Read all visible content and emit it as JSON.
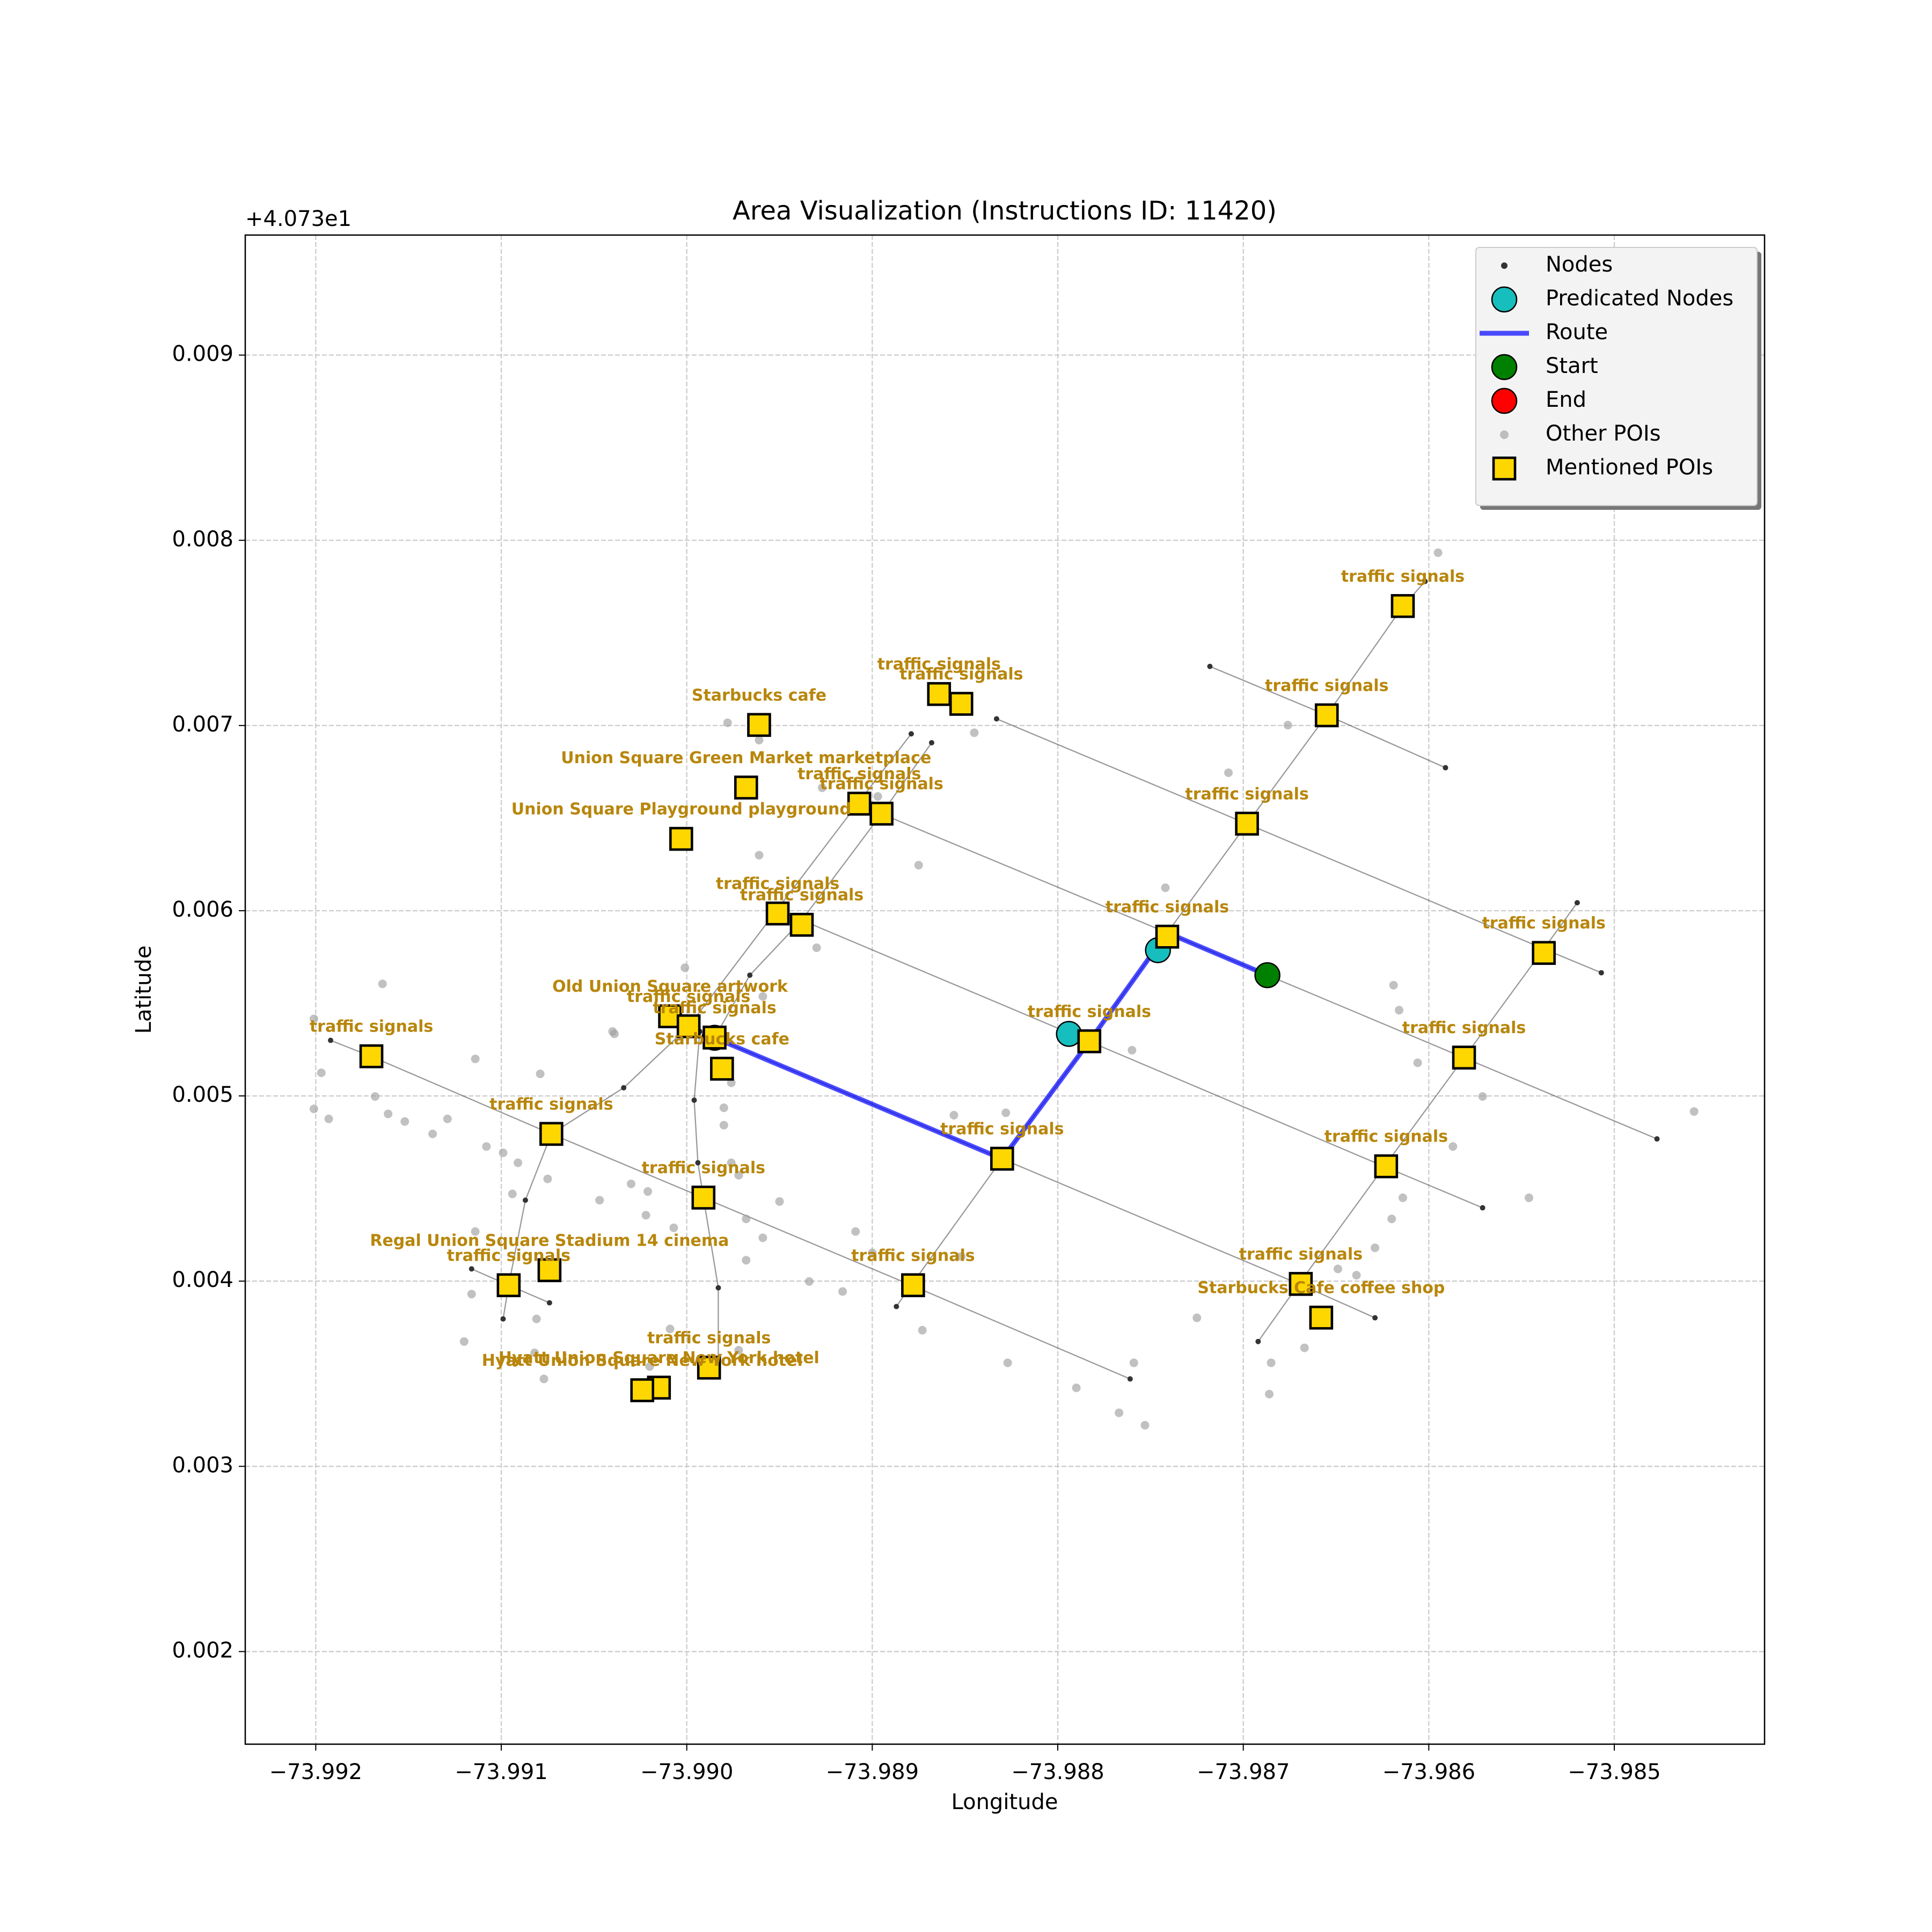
{
  "chart_data": {
    "type": "scatter",
    "title": "Area Visualization (Instructions ID: 11420)",
    "xlabel": "Longitude",
    "ylabel": "Latitude",
    "y_offset_text": "+4.073e1",
    "xlim": [
      -73.99238,
      -73.98419
    ],
    "ylim": [
      0.0015,
      0.009648
    ],
    "xticks": [
      {
        "value": -73.992,
        "label": "−73.992"
      },
      {
        "value": -73.991,
        "label": "−73.991"
      },
      {
        "value": -73.99,
        "label": "−73.990"
      },
      {
        "value": -73.989,
        "label": "−73.989"
      },
      {
        "value": -73.988,
        "label": "−73.988"
      },
      {
        "value": -73.987,
        "label": "−73.987"
      },
      {
        "value": -73.986,
        "label": "−73.986"
      },
      {
        "value": -73.985,
        "label": "−73.985"
      }
    ],
    "yticks": [
      0.002,
      0.003,
      0.004,
      0.005,
      0.006,
      0.007,
      0.008,
      0.009
    ],
    "grid": true,
    "legend": "upper right",
    "series": [
      {
        "name": "Nodes",
        "type": "nodes",
        "color": "#333333",
        "segments": [
          {
            "x": [
              -73.99192,
              -73.9917,
              -73.99073,
              -73.98991,
              -73.98879,
              -73.98761
            ],
            "y": [
              0.0053,
              0.005213,
              0.004795,
              0.00445,
              0.003978,
              0.003472
            ]
          },
          {
            "x": [
              -73.98953,
              -73.98938,
              -73.98783,
              -73.98624,
              -73.98571
            ],
            "y": [
              0.00601,
              0.005949,
              0.005294,
              0.004619,
              0.004396
            ]
          },
          {
            "x": [
              -73.98905,
              -73.98895,
              -73.98741,
              -73.98687,
              -73.98581,
              -73.98477
            ],
            "y": [
              0.006563,
              0.006523,
              0.005881,
              0.005652,
              0.005206,
              0.004768
            ]
          },
          {
            "x": [
              -73.98833,
              -73.98698,
              -73.98538,
              -73.98507
            ],
            "y": [
              0.007036,
              0.006469,
              0.005794,
              0.005665
            ]
          },
          {
            "x": [
              -73.98718,
              -73.98655,
              -73.98591
            ],
            "y": [
              0.007319,
              0.007056,
              0.006772
            ]
          },
          {
            "x": [
              -73.98993,
              -73.98985,
              -73.9883,
              -73.9867,
              -73.98629
            ],
            "y": [
              0.005348,
              0.005314,
              0.00466,
              0.003985,
              0.003802
            ]
          },
          {
            "x": [
              -73.99116,
              -73.99096,
              -73.99074
            ],
            "y": [
              0.004066,
              0.003978,
              0.003883
            ]
          },
          {
            "x": [
              -73.99099,
              -73.99096,
              -73.99087,
              -73.99073,
              -73.99034,
              -73.98999,
              -73.98951,
              -73.98908,
              -73.98879
            ],
            "y": [
              0.003796,
              0.003978,
              0.004437,
              0.004795,
              0.005044,
              0.005375,
              0.00601,
              0.006577,
              0.006955
            ]
          },
          {
            "x": [
              -73.98985,
              -73.98966,
              -73.98938,
              -73.98895,
              -73.98868
            ],
            "y": [
              0.005314,
              0.005652,
              0.005949,
              0.006523,
              0.006907
            ]
          },
          {
            "x": [
              -73.98887,
              -73.98879,
              -73.9883,
              -73.98783,
              -73.98741,
              -73.98698,
              -73.98655,
              -73.98614,
              -73.98602
            ],
            "y": [
              0.003863,
              0.003978,
              0.00466,
              0.005294,
              0.005881,
              0.006469,
              0.007056,
              0.007643,
              0.007778
            ]
          },
          {
            "x": [
              -73.98692,
              -73.9867,
              -73.98624,
              -73.98581,
              -73.98538,
              -73.9852
            ],
            "y": [
              0.003674,
              0.003985,
              0.004619,
              0.005206,
              0.005794,
              0.006043
            ]
          },
          {
            "x": [
              -73.98993,
              -73.98996,
              -73.98994,
              -73.98991,
              -73.98983,
              -73.98983
            ],
            "y": [
              0.005348,
              0.004977,
              0.004639,
              0.00445,
              0.003964,
              0.003532
            ]
          }
        ]
      },
      {
        "name": "Other POIs",
        "type": "scatter",
        "marker": "dot",
        "color": "#a0a0a0",
        "x": [
          -73.98595,
          -73.98676,
          -73.98708,
          -73.98897,
          -73.98927,
          -73.98961,
          -73.98978,
          -73.98961,
          -73.98875,
          -73.98845,
          -73.99001,
          -73.98959,
          -73.9904,
          -73.9893,
          -73.98742,
          -73.98619,
          -73.98616,
          -73.98606,
          -73.98571,
          -73.98587,
          -73.98546,
          -73.98457,
          -73.98614,
          -73.9862,
          -73.98629,
          -73.98639,
          -73.98649,
          -73.9876,
          -73.98856,
          -73.98828,
          -73.98852,
          -73.98873,
          -73.98827,
          -73.9879,
          -73.98767,
          -73.98753,
          -73.98759,
          -73.98725,
          -73.98685,
          -73.98686,
          -73.98667,
          -73.99201,
          -73.99197,
          -73.99201,
          -73.99193,
          -73.99164,
          -73.99168,
          -73.99161,
          -73.99152,
          -73.99137,
          -73.99129,
          -73.99114,
          -73.99079,
          -73.99108,
          -73.99099,
          -73.99091,
          -73.99075,
          -73.99094,
          -73.99114,
          -73.99116,
          -73.9912,
          -73.99081,
          -73.99082,
          -73.99077,
          -73.99047,
          -73.9903,
          -73.99021,
          -73.99022,
          -73.99007,
          -73.98976,
          -73.9898,
          -73.9898,
          -73.98972,
          -73.98968,
          -73.98959,
          -73.9895,
          -73.98968,
          -73.98934,
          -73.98916,
          -73.98909,
          -73.989,
          -73.99009,
          -73.9902,
          -73.98972,
          -73.99039,
          -73.98976
        ],
        "y": [
          0.007933,
          0.007002,
          0.006745,
          0.006617,
          0.006664,
          0.006921,
          0.007015,
          0.0063,
          0.006246,
          0.006961,
          0.005692,
          0.005537,
          0.005348,
          0.0058,
          0.006124,
          0.005598,
          0.005463,
          0.005179,
          0.004997,
          0.004727,
          0.00445,
          0.004916,
          0.00445,
          0.004336,
          0.00418,
          0.004032,
          0.004066,
          0.005247,
          0.004896,
          0.004909,
          0.004133,
          0.003735,
          0.003559,
          0.003424,
          0.003289,
          0.003222,
          0.003559,
          0.003802,
          0.003559,
          0.00339,
          0.00364,
          0.005416,
          0.005125,
          0.00493,
          0.004876,
          0.005605,
          0.004997,
          0.004903,
          0.004862,
          0.004795,
          0.004876,
          0.0052,
          0.005119,
          0.004727,
          0.004693,
          0.004639,
          0.004552,
          0.004471,
          0.004268,
          0.00393,
          0.003674,
          0.003796,
          0.003613,
          0.003472,
          0.004437,
          0.004525,
          0.004484,
          0.004356,
          0.004288,
          0.004639,
          0.004842,
          0.004936,
          0.004572,
          0.004336,
          0.004234,
          0.00443,
          0.004113,
          0.003998,
          0.003944,
          0.004268,
          0.004153,
          0.003742,
          0.003539,
          0.003627,
          0.005335,
          0.005071
        ]
      },
      {
        "name": "Route",
        "type": "line",
        "color": "#0000ff",
        "x": [
          -73.98687,
          -73.98741,
          -73.98783,
          -73.9883,
          -73.98985
        ],
        "y": [
          0.005652,
          0.005881,
          0.005294,
          0.00466,
          0.005314
        ]
      },
      {
        "name": "Predicated Nodes",
        "type": "scatter",
        "marker": "circle",
        "color": "#17bebe",
        "x": [
          -73.98746,
          -73.98794
        ],
        "y": [
          0.005787,
          0.005335
        ]
      },
      {
        "name": "Start",
        "type": "scatter",
        "marker": "circle",
        "color": "#008000",
        "x": [
          -73.98687
        ],
        "y": [
          0.005652
        ]
      },
      {
        "name": "End",
        "type": "scatter",
        "marker": "circle",
        "color": "#ff0000",
        "x": [
          -73.98985
        ],
        "y": [
          0.005314
        ]
      },
      {
        "name": "Mentioned POIs",
        "type": "scatter",
        "marker": "square",
        "color": "#ffd700",
        "label_color": "#b8860b",
        "x": [
          -73.98614,
          -73.98655,
          -73.98864,
          -73.98852,
          -73.98961,
          -73.98968,
          -73.99003,
          -73.98907,
          -73.98895,
          -73.98698,
          -73.98951,
          -73.98938,
          -73.98741,
          -73.98538,
          -73.9917,
          -73.99009,
          -73.98999,
          -73.98985,
          -73.98981,
          -73.98783,
          -73.98581,
          -73.99073,
          -73.9883,
          -73.98623,
          -73.98991,
          -73.99096,
          -73.99074,
          -73.98878,
          -73.98669,
          -73.98658,
          -73.98988,
          -73.99015,
          -73.99024
        ],
        "y": [
          0.007645,
          0.007055,
          0.00717,
          0.007117,
          0.007003,
          0.006665,
          0.006388,
          0.006578,
          0.006524,
          0.00647,
          0.005985,
          0.005924,
          0.00586,
          0.005772,
          0.005214,
          0.00543,
          0.005376,
          0.005315,
          0.005147,
          0.005295,
          0.005207,
          0.004795,
          0.004661,
          0.00462,
          0.004451,
          0.003978,
          0.004059,
          0.003978,
          0.003985,
          0.003803,
          0.003533,
          0.003425,
          0.003411
        ],
        "labels": [
          "traffic signals",
          "traffic signals",
          "traffic signals",
          "traffic signals",
          "Starbucks cafe",
          "Union Square Green Market marketplace",
          "Union Square Playground playground",
          "traffic signals",
          "traffic signals",
          "traffic signals",
          "traffic signals",
          "traffic signals",
          "traffic signals",
          "traffic signals",
          "traffic signals",
          "Old Union Square artwork",
          "traffic signals",
          "traffic signals",
          "Starbucks cafe",
          "traffic signals",
          "traffic signals",
          "traffic signals",
          "traffic signals",
          "traffic signals",
          "traffic signals",
          "traffic signals",
          "Regal Union Square Stadium 14 cinema",
          "traffic signals",
          "traffic signals",
          "Starbucks Cafe coffee shop",
          "traffic signals",
          "Hyatt Union Square New York hotel",
          "Hyatt Union Square New York hotel"
        ]
      }
    ]
  }
}
